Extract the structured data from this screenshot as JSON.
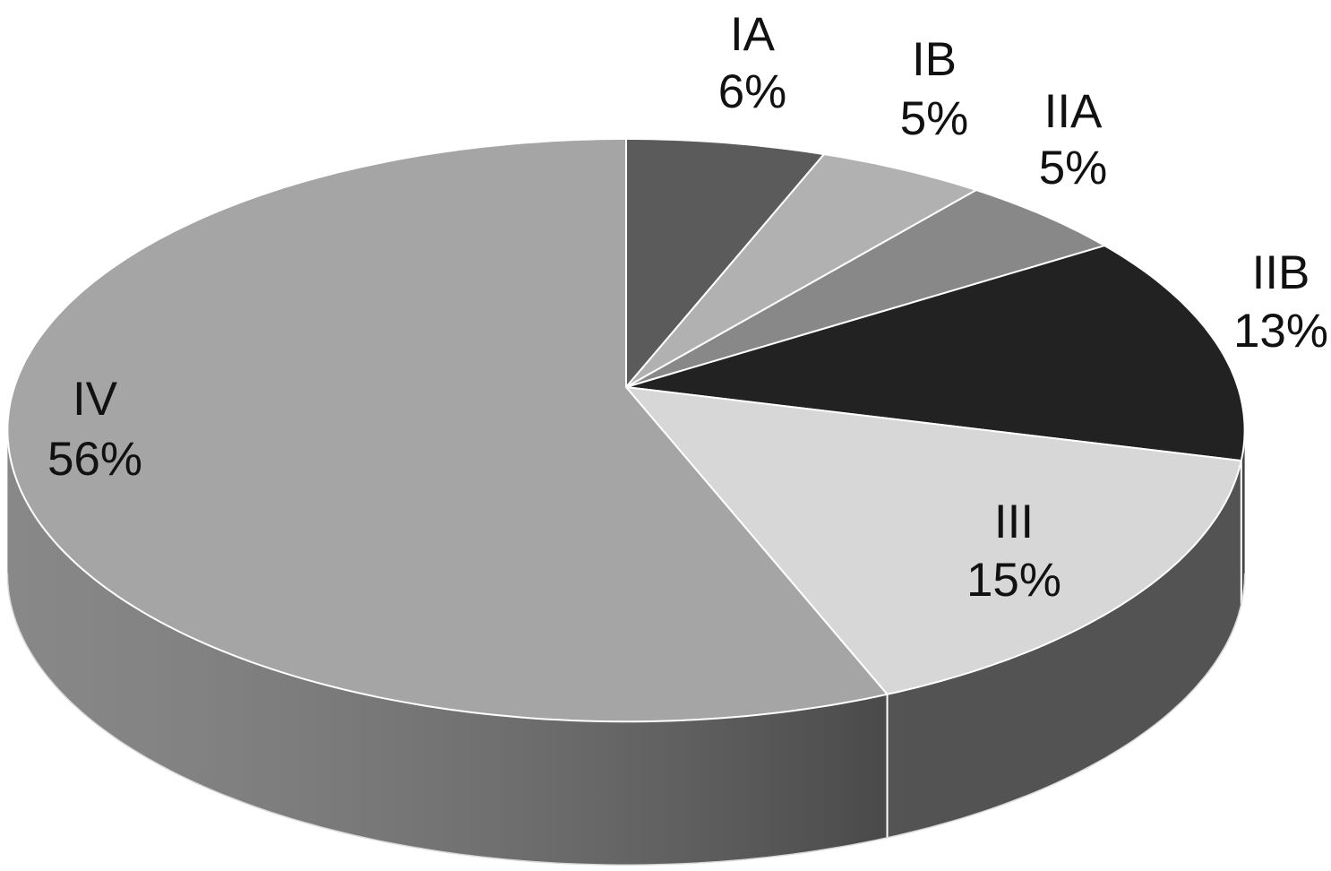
{
  "chart_data": {
    "type": "pie",
    "style": "3d",
    "start_position": "top",
    "direction": "clockwise",
    "legend": "none",
    "slices": [
      {
        "label": "IA",
        "value": 6,
        "percent_label": "6%",
        "color": "#5b5b5b",
        "side_color": "#3c3c3c"
      },
      {
        "label": "IB",
        "value": 5,
        "percent_label": "5%",
        "color": "#b1b1b1",
        "side_color": "#7a7a7a"
      },
      {
        "label": "IIA",
        "value": 5,
        "percent_label": "5%",
        "color": "#888888",
        "side_color": "#5c5c5c"
      },
      {
        "label": "IIB",
        "value": 13,
        "percent_label": "13%",
        "color": "#222222",
        "side_color": "#6a6a6a"
      },
      {
        "label": "III",
        "value": 15,
        "percent_label": "15%",
        "color": "#d7d7d7",
        "side_color": "#808080"
      },
      {
        "label": "IV",
        "value": 56,
        "percent_label": "56%",
        "color": "#a5a5a5",
        "side_color": "#6e6e6e"
      }
    ]
  }
}
